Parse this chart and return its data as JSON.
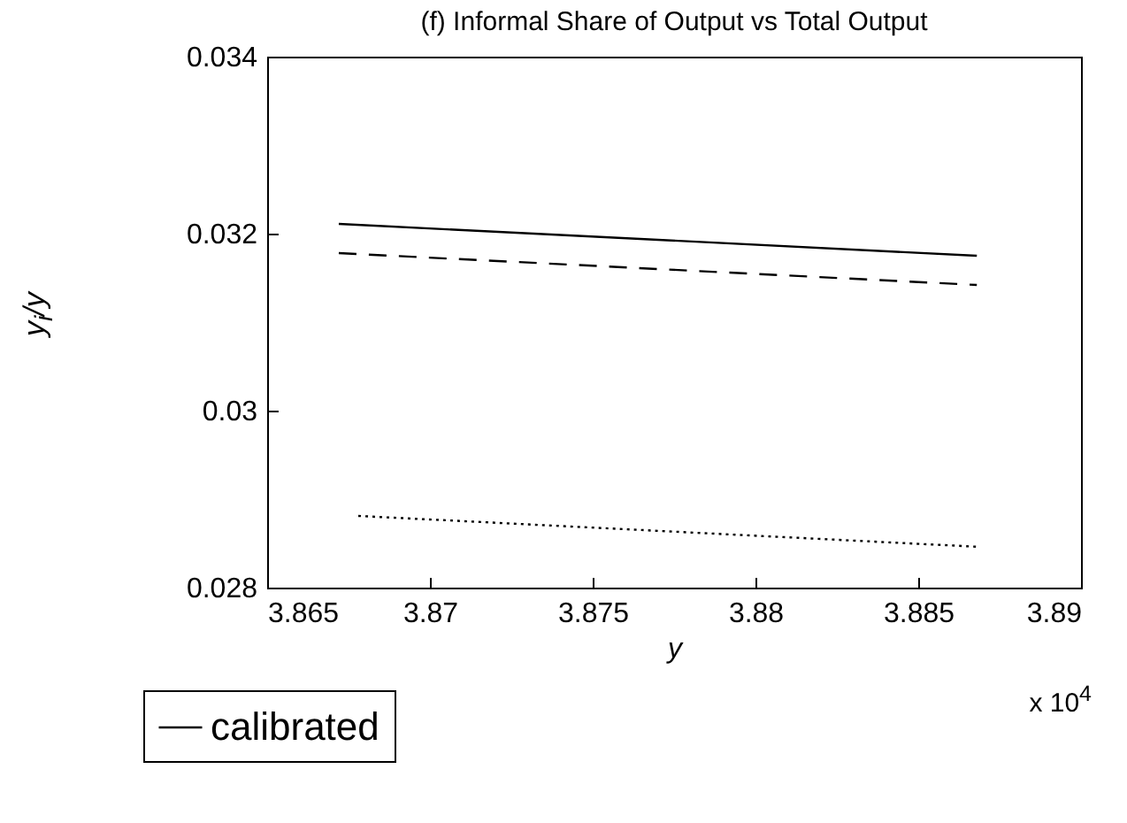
{
  "chart_data": {
    "type": "line",
    "title": "(f)  Informal Share of Output vs Total Output",
    "xlabel": "y",
    "ylabel": "y$_{i}$/y",
    "annotations": [
      "x 10$^{4}$"
    ],
    "xlim": [
      3.865,
      3.89
    ],
    "xticks": [
      3.865,
      3.87,
      3.875,
      3.88,
      3.885,
      3.89
    ],
    "ylim": [
      0.028,
      0.034
    ],
    "yticks": [
      0.028,
      0.03,
      0.032,
      0.034
    ],
    "grid": false,
    "legend": "bottom left",
    "series": [
      {
        "name": "calibrated",
        "color": "#000000",
        "line_style": "solid",
        "x": [
          3.8672,
          3.8868
        ],
        "values": [
          0.03211,
          0.03175
        ]
      },
      {
        "color": "#000000",
        "line_style": "dashed",
        "x": [
          3.8672,
          3.8868
        ],
        "values": [
          0.03178,
          0.03142
        ]
      },
      {
        "color": "#000000",
        "line_style": "dotted",
        "x": [
          3.8678,
          3.8869
        ],
        "values": [
          0.02881,
          0.02846
        ]
      }
    ]
  }
}
